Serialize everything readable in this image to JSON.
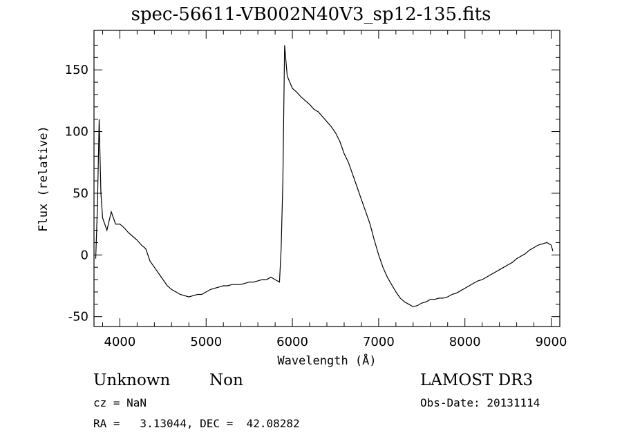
{
  "chart_data": {
    "type": "line",
    "title": "spec-56611-VB002N40V3_sp12-135.fits",
    "xlabel": "Wavelength (Å)",
    "ylabel": "Flux (relative)",
    "xlim": [
      3700,
      9100
    ],
    "ylim": [
      -58,
      182
    ],
    "xticks": [
      4000,
      5000,
      6000,
      7000,
      8000,
      9000
    ],
    "yticks": [
      -50,
      0,
      50,
      100,
      150
    ],
    "grid": false,
    "series": [
      {
        "points": [
          [
            3720,
            -3
          ],
          [
            3740,
            40
          ],
          [
            3760,
            110
          ],
          [
            3780,
            50
          ],
          [
            3800,
            30
          ],
          [
            3850,
            20
          ],
          [
            3900,
            35
          ],
          [
            3950,
            25
          ],
          [
            4000,
            25
          ],
          [
            4050,
            22
          ],
          [
            4100,
            18
          ],
          [
            4150,
            15
          ],
          [
            4200,
            12
          ],
          [
            4250,
            8
          ],
          [
            4300,
            5
          ],
          [
            4350,
            -5
          ],
          [
            4400,
            -10
          ],
          [
            4450,
            -15
          ],
          [
            4500,
            -20
          ],
          [
            4550,
            -25
          ],
          [
            4600,
            -28
          ],
          [
            4650,
            -30
          ],
          [
            4700,
            -32
          ],
          [
            4750,
            -33
          ],
          [
            4800,
            -34
          ],
          [
            4850,
            -33
          ],
          [
            4900,
            -32
          ],
          [
            4950,
            -32
          ],
          [
            5000,
            -30
          ],
          [
            5050,
            -28
          ],
          [
            5100,
            -27
          ],
          [
            5150,
            -26
          ],
          [
            5200,
            -25
          ],
          [
            5250,
            -25
          ],
          [
            5300,
            -24
          ],
          [
            5350,
            -24
          ],
          [
            5400,
            -24
          ],
          [
            5450,
            -23
          ],
          [
            5500,
            -22
          ],
          [
            5550,
            -22
          ],
          [
            5600,
            -21
          ],
          [
            5650,
            -20
          ],
          [
            5700,
            -20
          ],
          [
            5750,
            -18
          ],
          [
            5800,
            -20
          ],
          [
            5850,
            -22
          ],
          [
            5870,
            5
          ],
          [
            5890,
            60
          ],
          [
            5910,
            170
          ],
          [
            5940,
            145
          ],
          [
            5970,
            140
          ],
          [
            6000,
            135
          ],
          [
            6050,
            132
          ],
          [
            6100,
            128
          ],
          [
            6150,
            125
          ],
          [
            6200,
            122
          ],
          [
            6250,
            118
          ],
          [
            6300,
            116
          ],
          [
            6350,
            112
          ],
          [
            6400,
            108
          ],
          [
            6450,
            104
          ],
          [
            6500,
            99
          ],
          [
            6550,
            92
          ],
          [
            6600,
            82
          ],
          [
            6650,
            75
          ],
          [
            6700,
            65
          ],
          [
            6750,
            55
          ],
          [
            6800,
            45
          ],
          [
            6850,
            35
          ],
          [
            6900,
            25
          ],
          [
            6950,
            12
          ],
          [
            7000,
            0
          ],
          [
            7050,
            -10
          ],
          [
            7100,
            -18
          ],
          [
            7150,
            -24
          ],
          [
            7200,
            -30
          ],
          [
            7250,
            -35
          ],
          [
            7300,
            -38
          ],
          [
            7350,
            -40
          ],
          [
            7400,
            -42
          ],
          [
            7450,
            -41
          ],
          [
            7500,
            -39
          ],
          [
            7550,
            -38
          ],
          [
            7600,
            -36
          ],
          [
            7650,
            -36
          ],
          [
            7700,
            -35
          ],
          [
            7750,
            -35
          ],
          [
            7800,
            -34
          ],
          [
            7850,
            -32
          ],
          [
            7900,
            -31
          ],
          [
            7950,
            -29
          ],
          [
            8000,
            -27
          ],
          [
            8050,
            -25
          ],
          [
            8100,
            -23
          ],
          [
            8150,
            -21
          ],
          [
            8200,
            -20
          ],
          [
            8250,
            -18
          ],
          [
            8300,
            -16
          ],
          [
            8350,
            -14
          ],
          [
            8400,
            -12
          ],
          [
            8450,
            -10
          ],
          [
            8500,
            -8
          ],
          [
            8550,
            -6
          ],
          [
            8600,
            -3
          ],
          [
            8650,
            -1
          ],
          [
            8700,
            1
          ],
          [
            8750,
            4
          ],
          [
            8800,
            6
          ],
          [
            8850,
            8
          ],
          [
            8900,
            9
          ],
          [
            8950,
            10
          ],
          [
            9000,
            8
          ],
          [
            9020,
            3
          ]
        ]
      }
    ]
  },
  "info": {
    "class_name": "Unknown",
    "subclass": "Non",
    "survey": "LAMOST DR3",
    "cz": "cz = NaN",
    "obs_date": "Obs-Date: 20131114",
    "coords": "RA =   3.13044, DEC =  42.08282"
  },
  "colors": {
    "line": "#000000",
    "background": "#ffffff"
  }
}
